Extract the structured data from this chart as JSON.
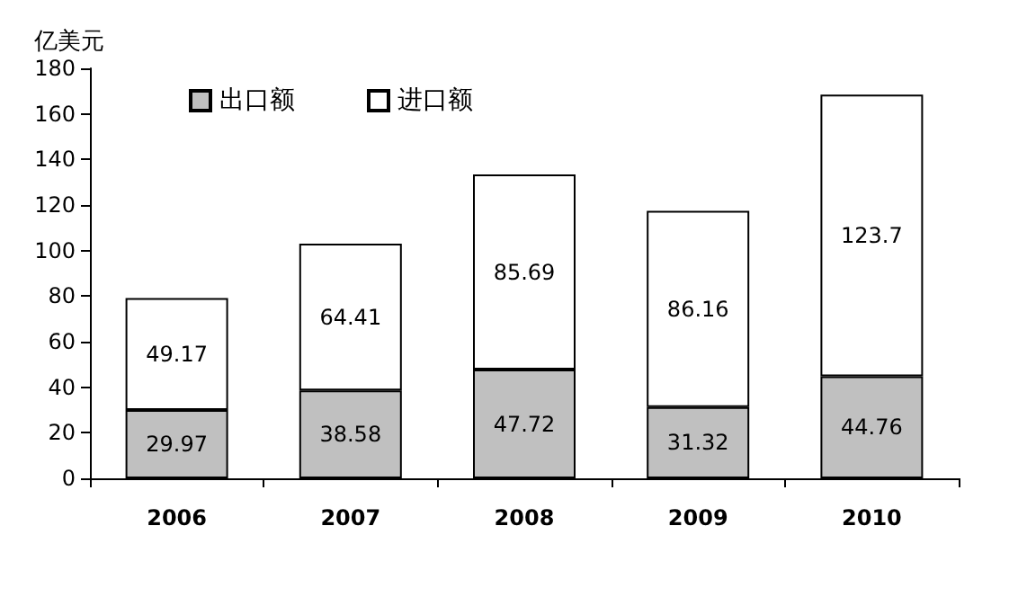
{
  "chart_data": {
    "type": "bar",
    "ylabel": "亿美元",
    "categories": [
      "2006",
      "2007",
      "2008",
      "2009",
      "2010"
    ],
    "stacked": true,
    "series": [
      {
        "name": "出口额",
        "color": "#c0c0c0",
        "values": [
          29.97,
          38.58,
          47.72,
          31.32,
          44.76
        ]
      },
      {
        "name": "进口额",
        "color": "#ffffff",
        "values": [
          49.17,
          64.41,
          85.69,
          86.16,
          123.7
        ]
      }
    ],
    "ylim": [
      0,
      180
    ],
    "yticks": [
      0,
      20,
      40,
      60,
      80,
      100,
      120,
      140,
      160,
      180
    ],
    "data_labels": true,
    "grid": false,
    "legend": "top left"
  }
}
